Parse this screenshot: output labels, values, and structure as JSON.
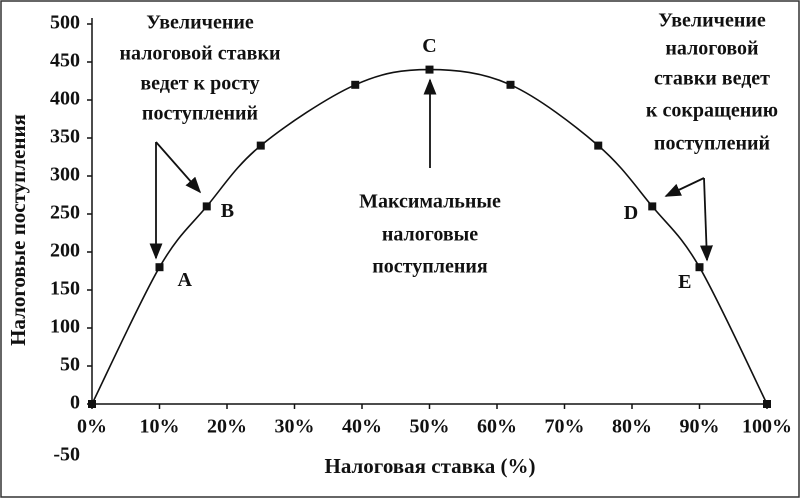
{
  "chart_data": {
    "type": "line",
    "x_label": "Налоговая ставка (%)",
    "y_label": "Налоговые поступления",
    "x": [
      0,
      10,
      17,
      25,
      39,
      50,
      62,
      75,
      83,
      90,
      100
    ],
    "values": [
      0,
      180,
      260,
      340,
      420,
      440,
      420,
      340,
      260,
      180,
      0
    ],
    "point_labels": [
      null,
      "A",
      "B",
      null,
      null,
      "C",
      null,
      null,
      "D",
      "E",
      null
    ],
    "color": "#111111",
    "xlim": [
      0,
      100
    ],
    "xticks": [
      {
        "value": 0,
        "label": "0%"
      },
      {
        "value": 10,
        "label": "10%"
      },
      {
        "value": 20,
        "label": "20%"
      },
      {
        "value": 30,
        "label": "30%"
      },
      {
        "value": 40,
        "label": "40%"
      },
      {
        "value": 50,
        "label": "50%"
      },
      {
        "value": 60,
        "label": "60%"
      },
      {
        "value": 70,
        "label": "70%"
      },
      {
        "value": 80,
        "label": "80%"
      },
      {
        "value": 90,
        "label": "90%"
      },
      {
        "value": 100,
        "label": "100%"
      }
    ],
    "ylim": [
      -50,
      500
    ],
    "yticks": [
      -50,
      0,
      50,
      100,
      150,
      200,
      250,
      300,
      350,
      400,
      450,
      500
    ],
    "annotations": [
      {
        "lines": [
          "Увеличение",
          "налоговой ставки",
          "ведет к росту",
          "поступлений"
        ]
      },
      {
        "lines": [
          "Максимальные",
          "налоговые",
          "поступления"
        ]
      },
      {
        "lines": [
          "Увеличение",
          "налоговой",
          "ставки ведет",
          "к сокращению",
          "поступлений"
        ]
      }
    ]
  }
}
